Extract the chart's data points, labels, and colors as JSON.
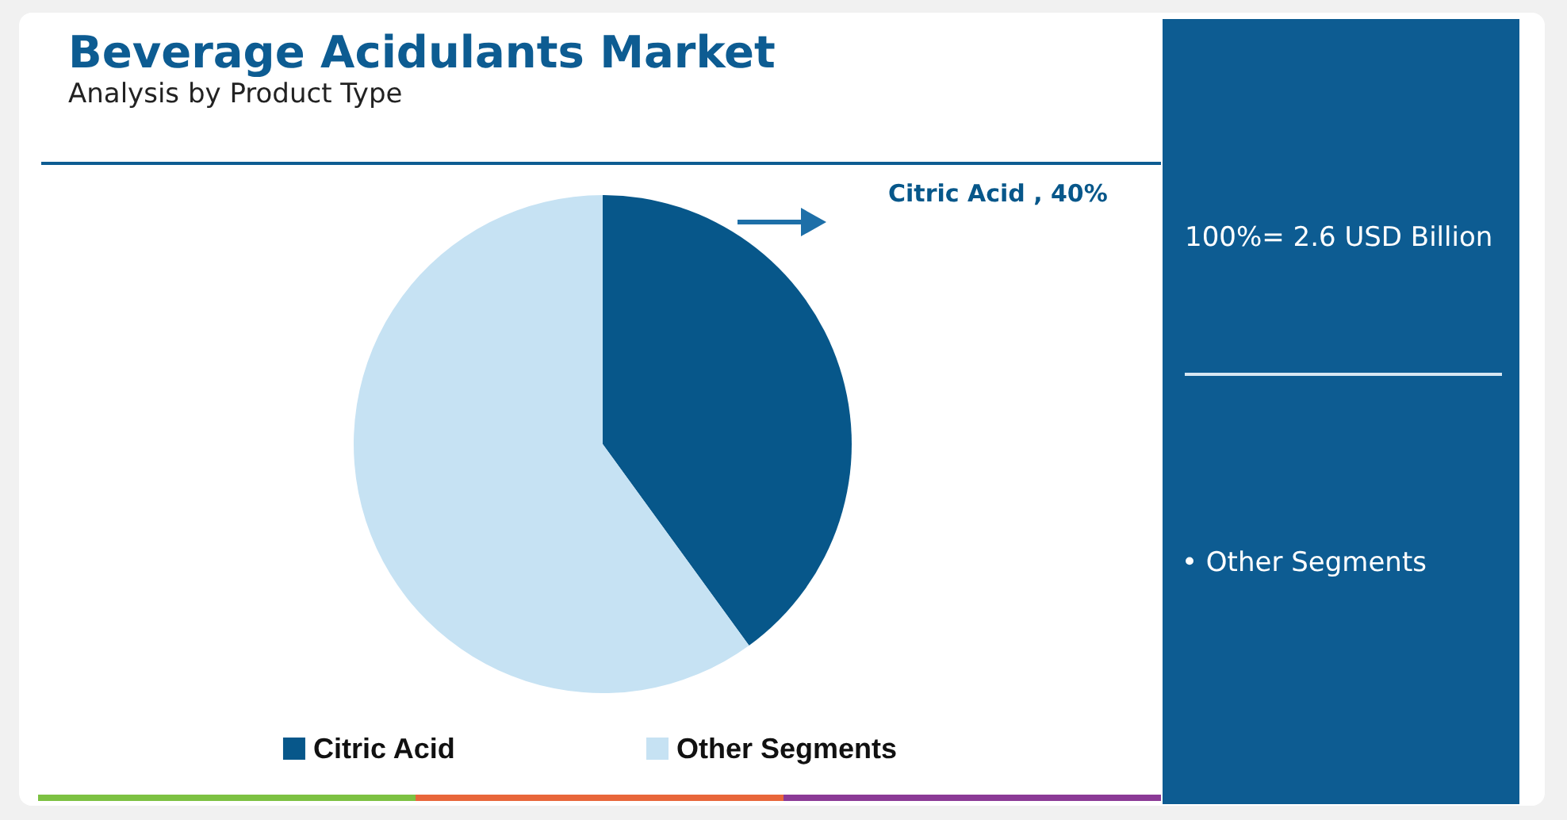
{
  "chart_data": {
    "type": "pie",
    "title": "Beverage Acidulants Market",
    "subtitle": "Analysis by Product Type",
    "categories": [
      "Citric Acid",
      "Other Segments"
    ],
    "values": [
      40,
      60
    ],
    "colors": [
      "#07578a",
      "#c6e2f3"
    ],
    "value_labels": [
      "Citric Acid , 40%",
      null
    ],
    "legend": "bottom",
    "annotations": [
      "100%= 2.6 USD Billion",
      "• Other Segments"
    ]
  }
}
